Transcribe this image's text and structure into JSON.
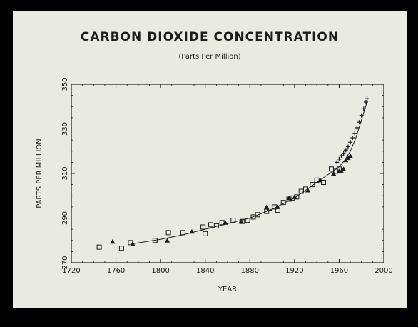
{
  "chart_data": {
    "type": "scatter",
    "title": "CARBON DIOXIDE CONCENTRATION",
    "subtitle": "(Parts Per Million)",
    "xlabel": "YEAR",
    "ylabel": "PARTS PER MILLION",
    "xlim": [
      1720,
      2000
    ],
    "ylim": [
      270,
      350
    ],
    "xticks": [
      1720,
      1760,
      1800,
      1840,
      1880,
      1920,
      1960,
      2000
    ],
    "yticks": [
      270,
      290,
      310,
      330,
      350
    ],
    "grid": false,
    "series": [
      {
        "marker": "square",
        "points": [
          [
            1745,
            277
          ],
          [
            1765,
            276.5
          ],
          [
            1773,
            279
          ],
          [
            1795,
            280
          ],
          [
            1807,
            283.5
          ],
          [
            1820,
            283.5
          ],
          [
            1838,
            286
          ],
          [
            1840,
            283
          ],
          [
            1845,
            287
          ],
          [
            1850,
            286.5
          ],
          [
            1855,
            288
          ],
          [
            1865,
            289
          ],
          [
            1873,
            288.5
          ],
          [
            1878,
            289
          ],
          [
            1883,
            290.5
          ],
          [
            1887,
            291.5
          ],
          [
            1895,
            293
          ],
          [
            1898,
            294.5
          ],
          [
            1902,
            295
          ],
          [
            1905,
            293.5
          ],
          [
            1910,
            297
          ],
          [
            1915,
            298.5
          ],
          [
            1918,
            299
          ],
          [
            1922,
            299.5
          ],
          [
            1926,
            302
          ],
          [
            1930,
            303
          ],
          [
            1936,
            305
          ],
          [
            1940,
            307
          ],
          [
            1946,
            306
          ],
          [
            1953,
            312
          ],
          [
            1957,
            311
          ],
          [
            1960,
            312
          ]
        ]
      },
      {
        "marker": "triangle",
        "points": [
          [
            1757,
            279.5
          ],
          [
            1775,
            278.5
          ],
          [
            1806,
            280
          ],
          [
            1828,
            284
          ],
          [
            1858,
            288
          ],
          [
            1872,
            288.5
          ],
          [
            1895,
            295
          ],
          [
            1905,
            295
          ],
          [
            1915,
            299
          ],
          [
            1920,
            299.5
          ],
          [
            1932,
            302.5
          ],
          [
            1943,
            307
          ],
          [
            1955,
            310
          ],
          [
            1960,
            311
          ],
          [
            1962,
            311
          ],
          [
            1964,
            312
          ],
          [
            1966,
            316
          ],
          [
            1968,
            317
          ],
          [
            1970,
            318
          ]
        ]
      },
      {
        "marker": "plus",
        "points": [
          [
            1958,
            315
          ],
          [
            1960,
            316.5
          ],
          [
            1962,
            318
          ],
          [
            1964,
            319
          ],
          [
            1966,
            320.5
          ],
          [
            1968,
            322
          ],
          [
            1970,
            324
          ],
          [
            1972,
            326
          ],
          [
            1974,
            328
          ],
          [
            1976,
            330.5
          ],
          [
            1978,
            333
          ],
          [
            1980,
            336
          ],
          [
            1982,
            339
          ],
          [
            1984,
            342
          ],
          [
            1985,
            343.5
          ]
        ]
      }
    ],
    "fit_curve": [
      [
        1775,
        278.5
      ],
      [
        1800,
        280.5
      ],
      [
        1820,
        282.5
      ],
      [
        1840,
        285
      ],
      [
        1860,
        287.5
      ],
      [
        1880,
        290
      ],
      [
        1900,
        294
      ],
      [
        1910,
        296.5
      ],
      [
        1920,
        299
      ],
      [
        1930,
        302.5
      ],
      [
        1940,
        306
      ],
      [
        1950,
        309.5
      ],
      [
        1960,
        313
      ],
      [
        1965,
        316
      ],
      [
        1970,
        320
      ],
      [
        1975,
        326
      ],
      [
        1980,
        334
      ],
      [
        1985,
        342
      ]
    ]
  }
}
